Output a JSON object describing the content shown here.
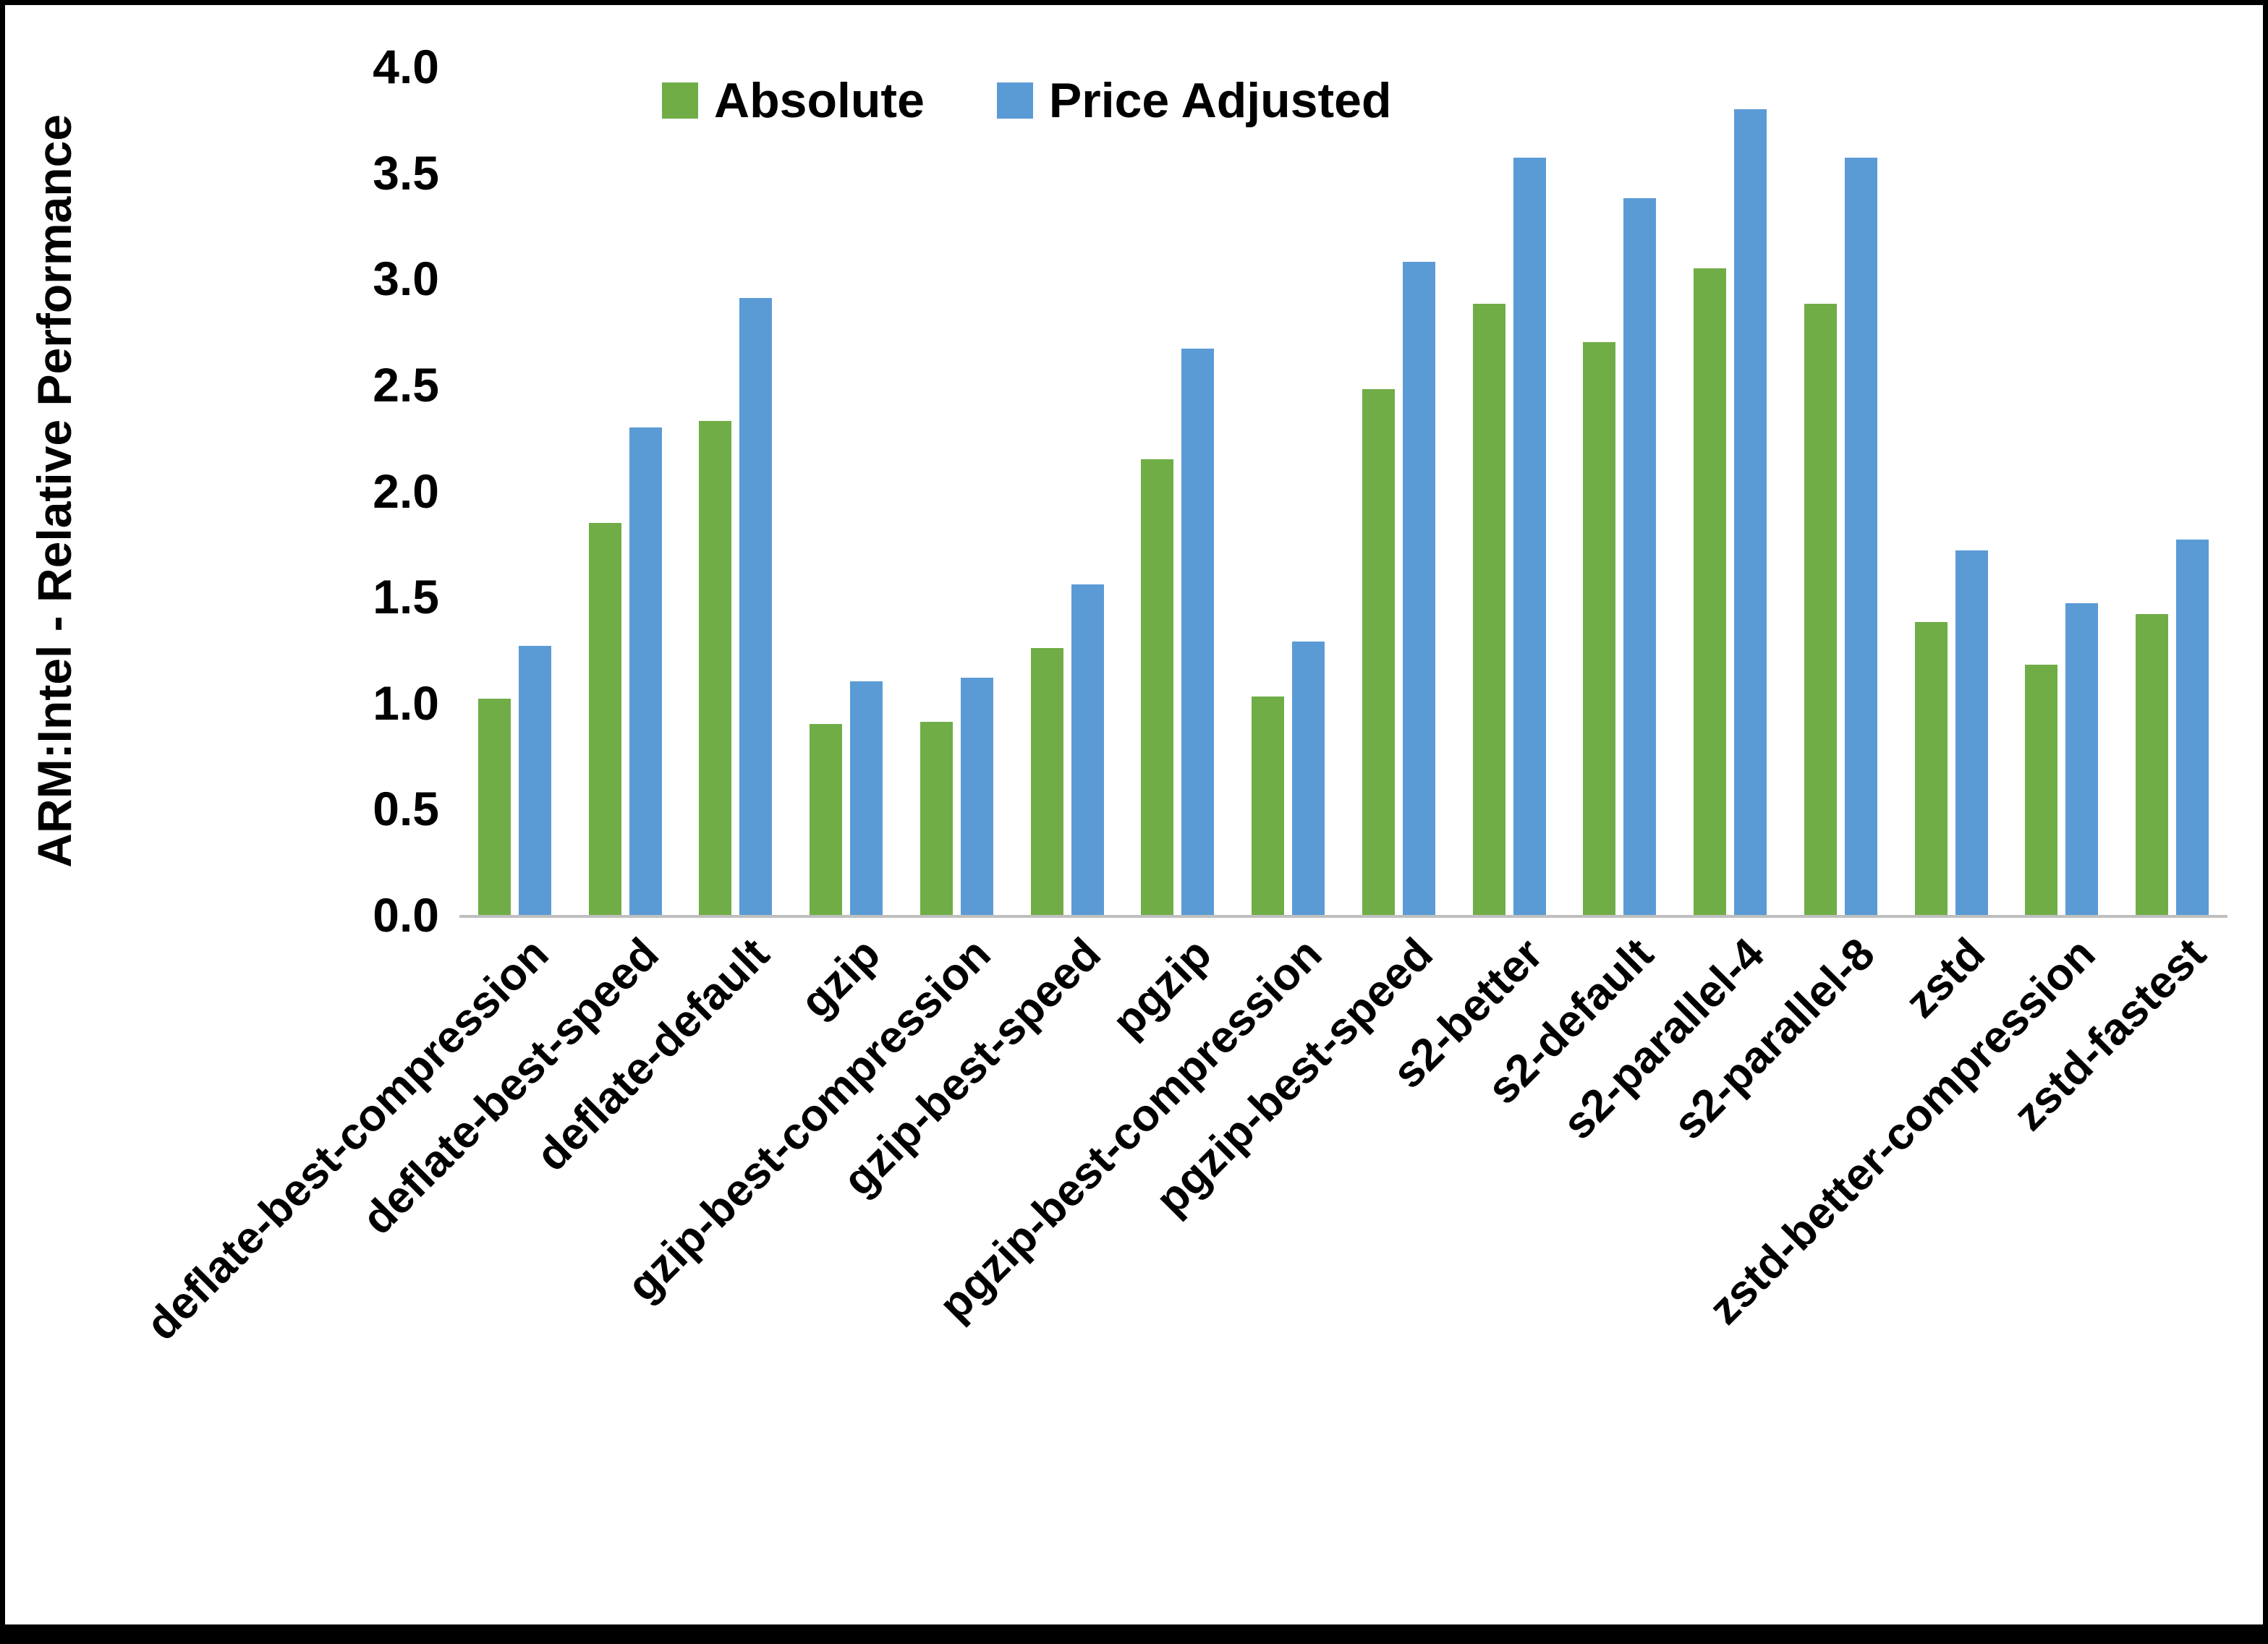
{
  "chart_data": {
    "type": "bar",
    "title": "",
    "ylabel": "ARM:Intel - Relative Performance",
    "xlabel": "",
    "ylim": [
      0,
      4.0
    ],
    "yticks": [
      0.0,
      0.5,
      1.0,
      1.5,
      2.0,
      2.5,
      3.0,
      3.5,
      4.0
    ],
    "grid": false,
    "legend_position": "top",
    "categories": [
      "deflate-best-compression",
      "deflate-best-speed",
      "deflate-default",
      "gzip",
      "gzip-best-compression",
      "gzip-best-speed",
      "pgzip",
      "pgzip-best-compression",
      "pgzip-best-speed",
      "s2-better",
      "s2-default",
      "s2-parallel-4",
      "s2-parallel-8",
      "zstd",
      "zstd-better-compression",
      "zstd-fastest"
    ],
    "series": [
      {
        "name": "Absolute",
        "color": "#70AD47",
        "values": [
          1.02,
          1.85,
          2.33,
          0.9,
          0.91,
          1.26,
          2.15,
          1.03,
          2.48,
          2.88,
          2.7,
          3.05,
          2.88,
          1.38,
          1.18,
          1.42
        ]
      },
      {
        "name": "Price Adjusted",
        "color": "#5B9BD5",
        "values": [
          1.27,
          2.3,
          2.91,
          1.1,
          1.12,
          1.56,
          2.67,
          1.29,
          3.08,
          3.57,
          3.38,
          3.8,
          3.57,
          1.72,
          1.47,
          1.77
        ]
      }
    ]
  }
}
